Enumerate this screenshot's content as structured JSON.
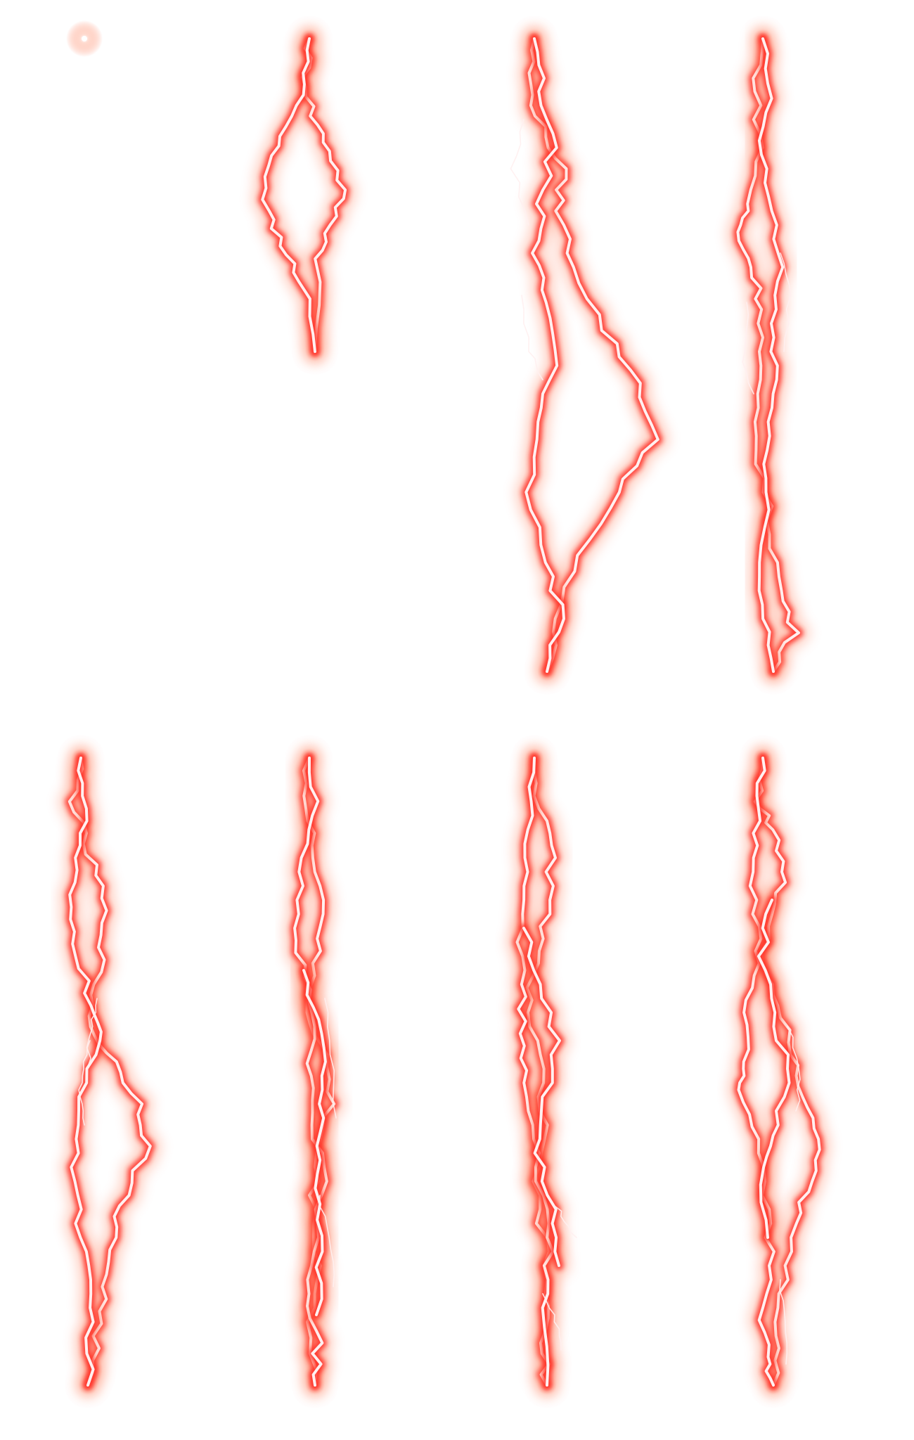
{
  "sprite_sheet": {
    "background": "#ffffff",
    "glow_color": "#ff2a22",
    "halo_color": "#ff8a6a",
    "core_color": "#fff0f0",
    "frame_count": 8,
    "rows": 2,
    "columns": 4,
    "frames": [
      {
        "index": 1,
        "content": "spark"
      },
      {
        "index": 2,
        "content": "lightning-bolt"
      },
      {
        "index": 3,
        "content": "lightning-bolt"
      },
      {
        "index": 4,
        "content": "lightning-bolt"
      },
      {
        "index": 5,
        "content": "lightning-bolt"
      },
      {
        "index": 6,
        "content": "lightning-bolt"
      },
      {
        "index": 7,
        "content": "lightning-bolt"
      },
      {
        "index": 8,
        "content": "lightning-bolt"
      }
    ]
  }
}
